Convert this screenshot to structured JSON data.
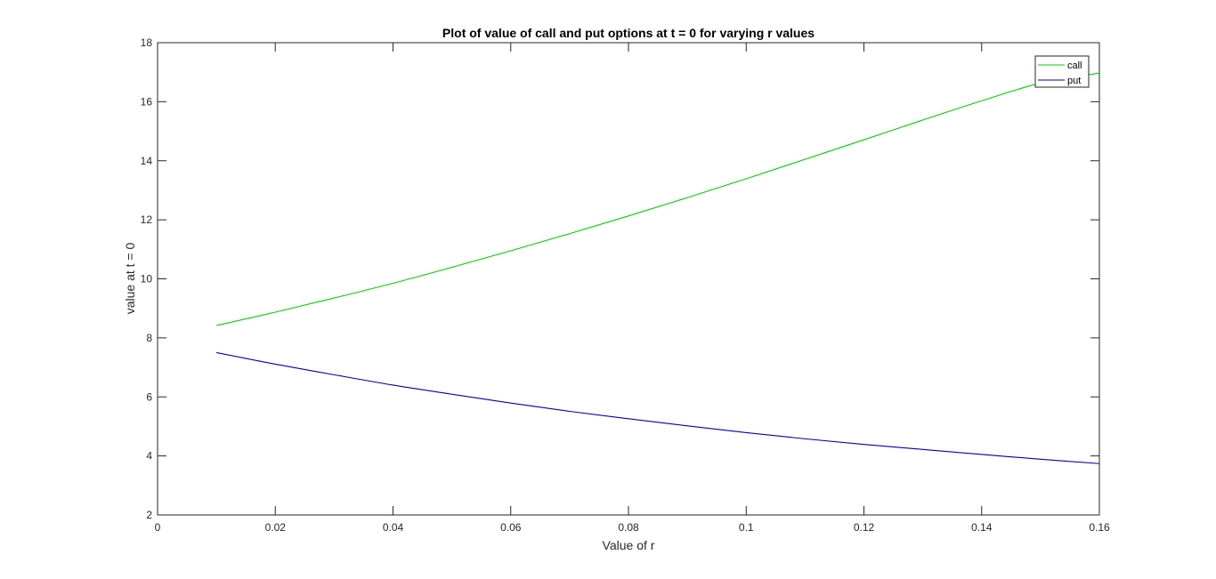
{
  "chart_data": {
    "type": "line",
    "title": "Plot of value of call and put options at t = 0 for varying r values",
    "xlabel": "Value of r",
    "ylabel": "value at t = 0",
    "xlim": [
      0,
      0.16
    ],
    "ylim": [
      2,
      18
    ],
    "xticks": [
      0,
      0.02,
      0.04,
      0.06,
      0.08,
      0.1,
      0.12,
      0.14,
      0.16
    ],
    "xtick_labels": [
      "0",
      "0.02",
      "0.04",
      "0.06",
      "0.08",
      "0.1",
      "0.12",
      "0.14",
      "0.16"
    ],
    "yticks": [
      2,
      4,
      6,
      8,
      10,
      12,
      14,
      16,
      18
    ],
    "ytick_labels": [
      "2",
      "4",
      "6",
      "8",
      "10",
      "12",
      "14",
      "16",
      "18"
    ],
    "grid": false,
    "legend_position": "top-right",
    "x": [
      0.01,
      0.02,
      0.03,
      0.04,
      0.05,
      0.06,
      0.07,
      0.08,
      0.09,
      0.1,
      0.11,
      0.12,
      0.13,
      0.14,
      0.15,
      0.16
    ],
    "series": [
      {
        "name": "call",
        "color": "#00d000",
        "values": [
          8.42,
          8.87,
          9.35,
          9.85,
          10.39,
          10.95,
          11.53,
          12.13,
          12.75,
          13.39,
          14.05,
          14.71,
          15.38,
          16.03,
          16.63,
          16.97
        ]
      },
      {
        "name": "put",
        "color": "#0000b4",
        "values": [
          7.5,
          7.11,
          6.75,
          6.4,
          6.09,
          5.79,
          5.51,
          5.26,
          5.02,
          4.79,
          4.58,
          4.39,
          4.22,
          4.05,
          3.89,
          3.74
        ]
      }
    ]
  }
}
